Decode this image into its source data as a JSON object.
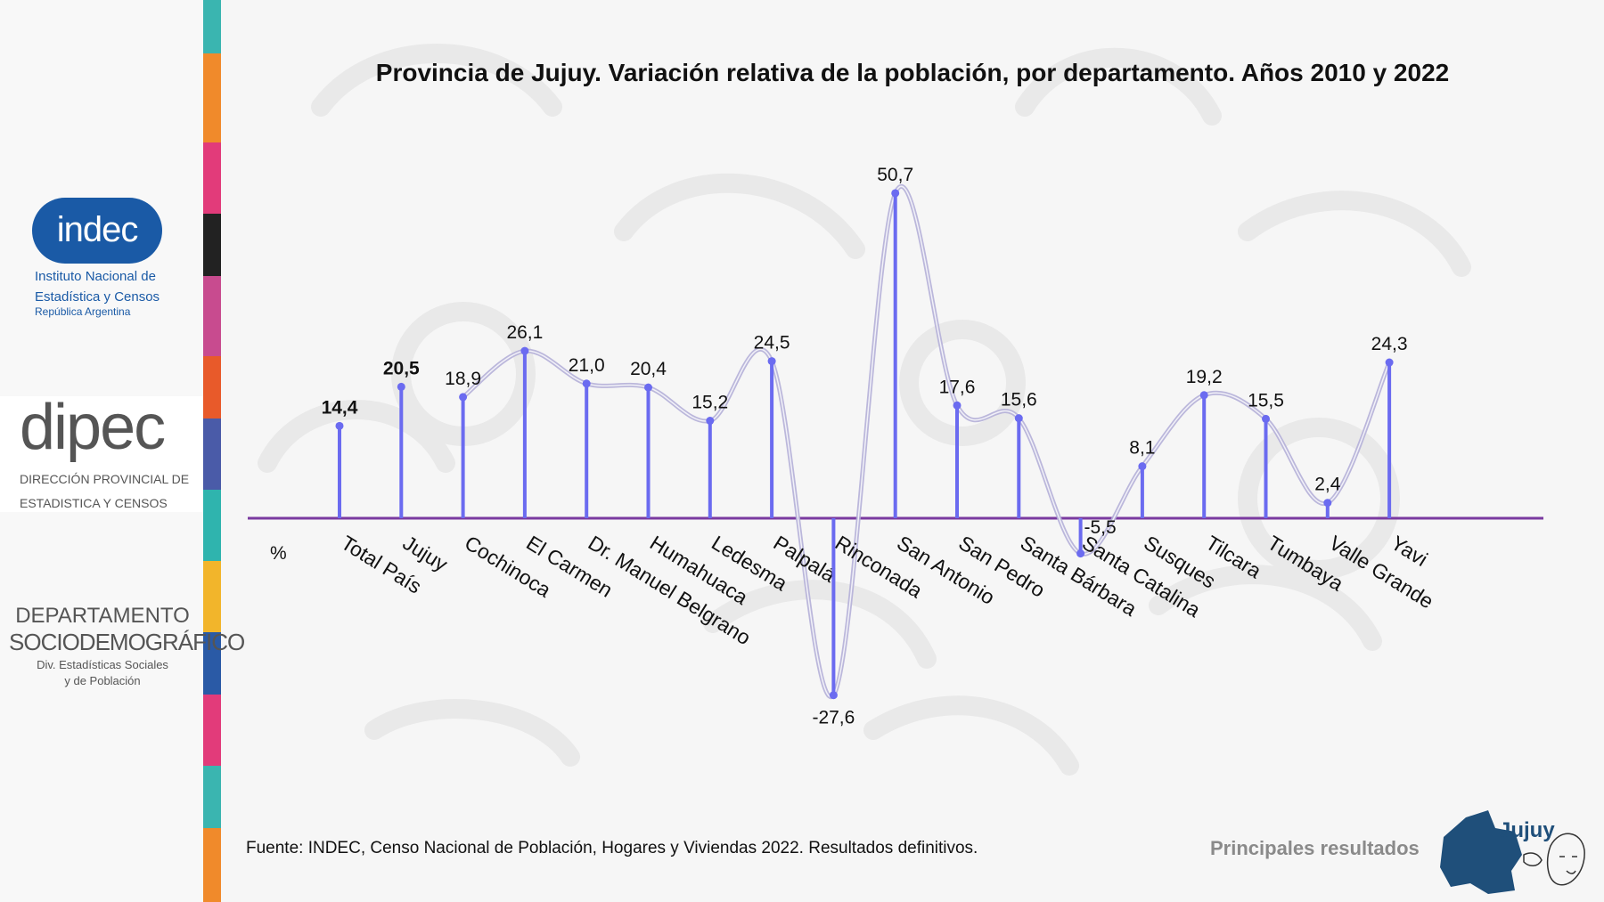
{
  "title": "Provincia de Jujuy. Variación relativa de la población, por departamento. Años 2010 y 2022",
  "source": "Fuente: INDEC, Censo Nacional de Población, Hogares y Viviendas 2022. Resultados definitivos.",
  "footer_label": "Principales resultados",
  "logos": {
    "indec": {
      "name": "indec",
      "line1": "Instituto Nacional de",
      "line2": "Estadística y Censos",
      "line3": "República Argentina"
    },
    "dipec": {
      "name": "dipec",
      "line1": "DIRECCIÓN PROVINCIAL DE",
      "line2": "ESTADISTICA Y CENSOS"
    },
    "depto": {
      "line1": "DEPARTAMENTO",
      "line2": "SOCIODEMOGRÁFICO",
      "line3": "Div. Estadísticas Sociales",
      "line4": "y de Población"
    },
    "jujuy": "Jujuy"
  },
  "colors": {
    "stem": "#6b6bf0",
    "axis": "#7a3aa0",
    "curve": "#b5b0d8",
    "brand_blue": "#1a5aa6",
    "footer_blue": "#1f4f7a"
  },
  "chart_data": {
    "type": "line",
    "unit_label": "%",
    "categories": [
      "Total País",
      "Jujuy",
      "Cochinoca",
      "El Carmen",
      "Dr. Manuel Belgrano",
      "Humahuaca",
      "Ledesma",
      "Palpalá",
      "Rinconada",
      "San Antonio",
      "San Pedro",
      "Santa Bárbara",
      "Santa Catalina",
      "Susques",
      "Tilcara",
      "Tumbaya",
      "Valle Grande",
      "Yavi"
    ],
    "values": [
      14.4,
      20.5,
      18.9,
      26.1,
      21.0,
      20.4,
      15.2,
      24.5,
      -27.6,
      50.7,
      17.6,
      15.6,
      -5.5,
      8.1,
      19.2,
      15.5,
      2.4,
      24.3
    ],
    "labels": [
      "14,4",
      "20,5",
      "18,9",
      "26,1",
      "21,0",
      "20,4",
      "15,2",
      "24,5",
      "-27,6",
      "50,7",
      "17,6",
      "15,6",
      "-5,5",
      "8,1",
      "19,2",
      "15,5",
      "2,4",
      "24,3"
    ],
    "bold_labels": [
      "Total País",
      "Jujuy"
    ],
    "smoothed_line_from": "Cochinoca",
    "ylim": [
      -30,
      55
    ]
  }
}
